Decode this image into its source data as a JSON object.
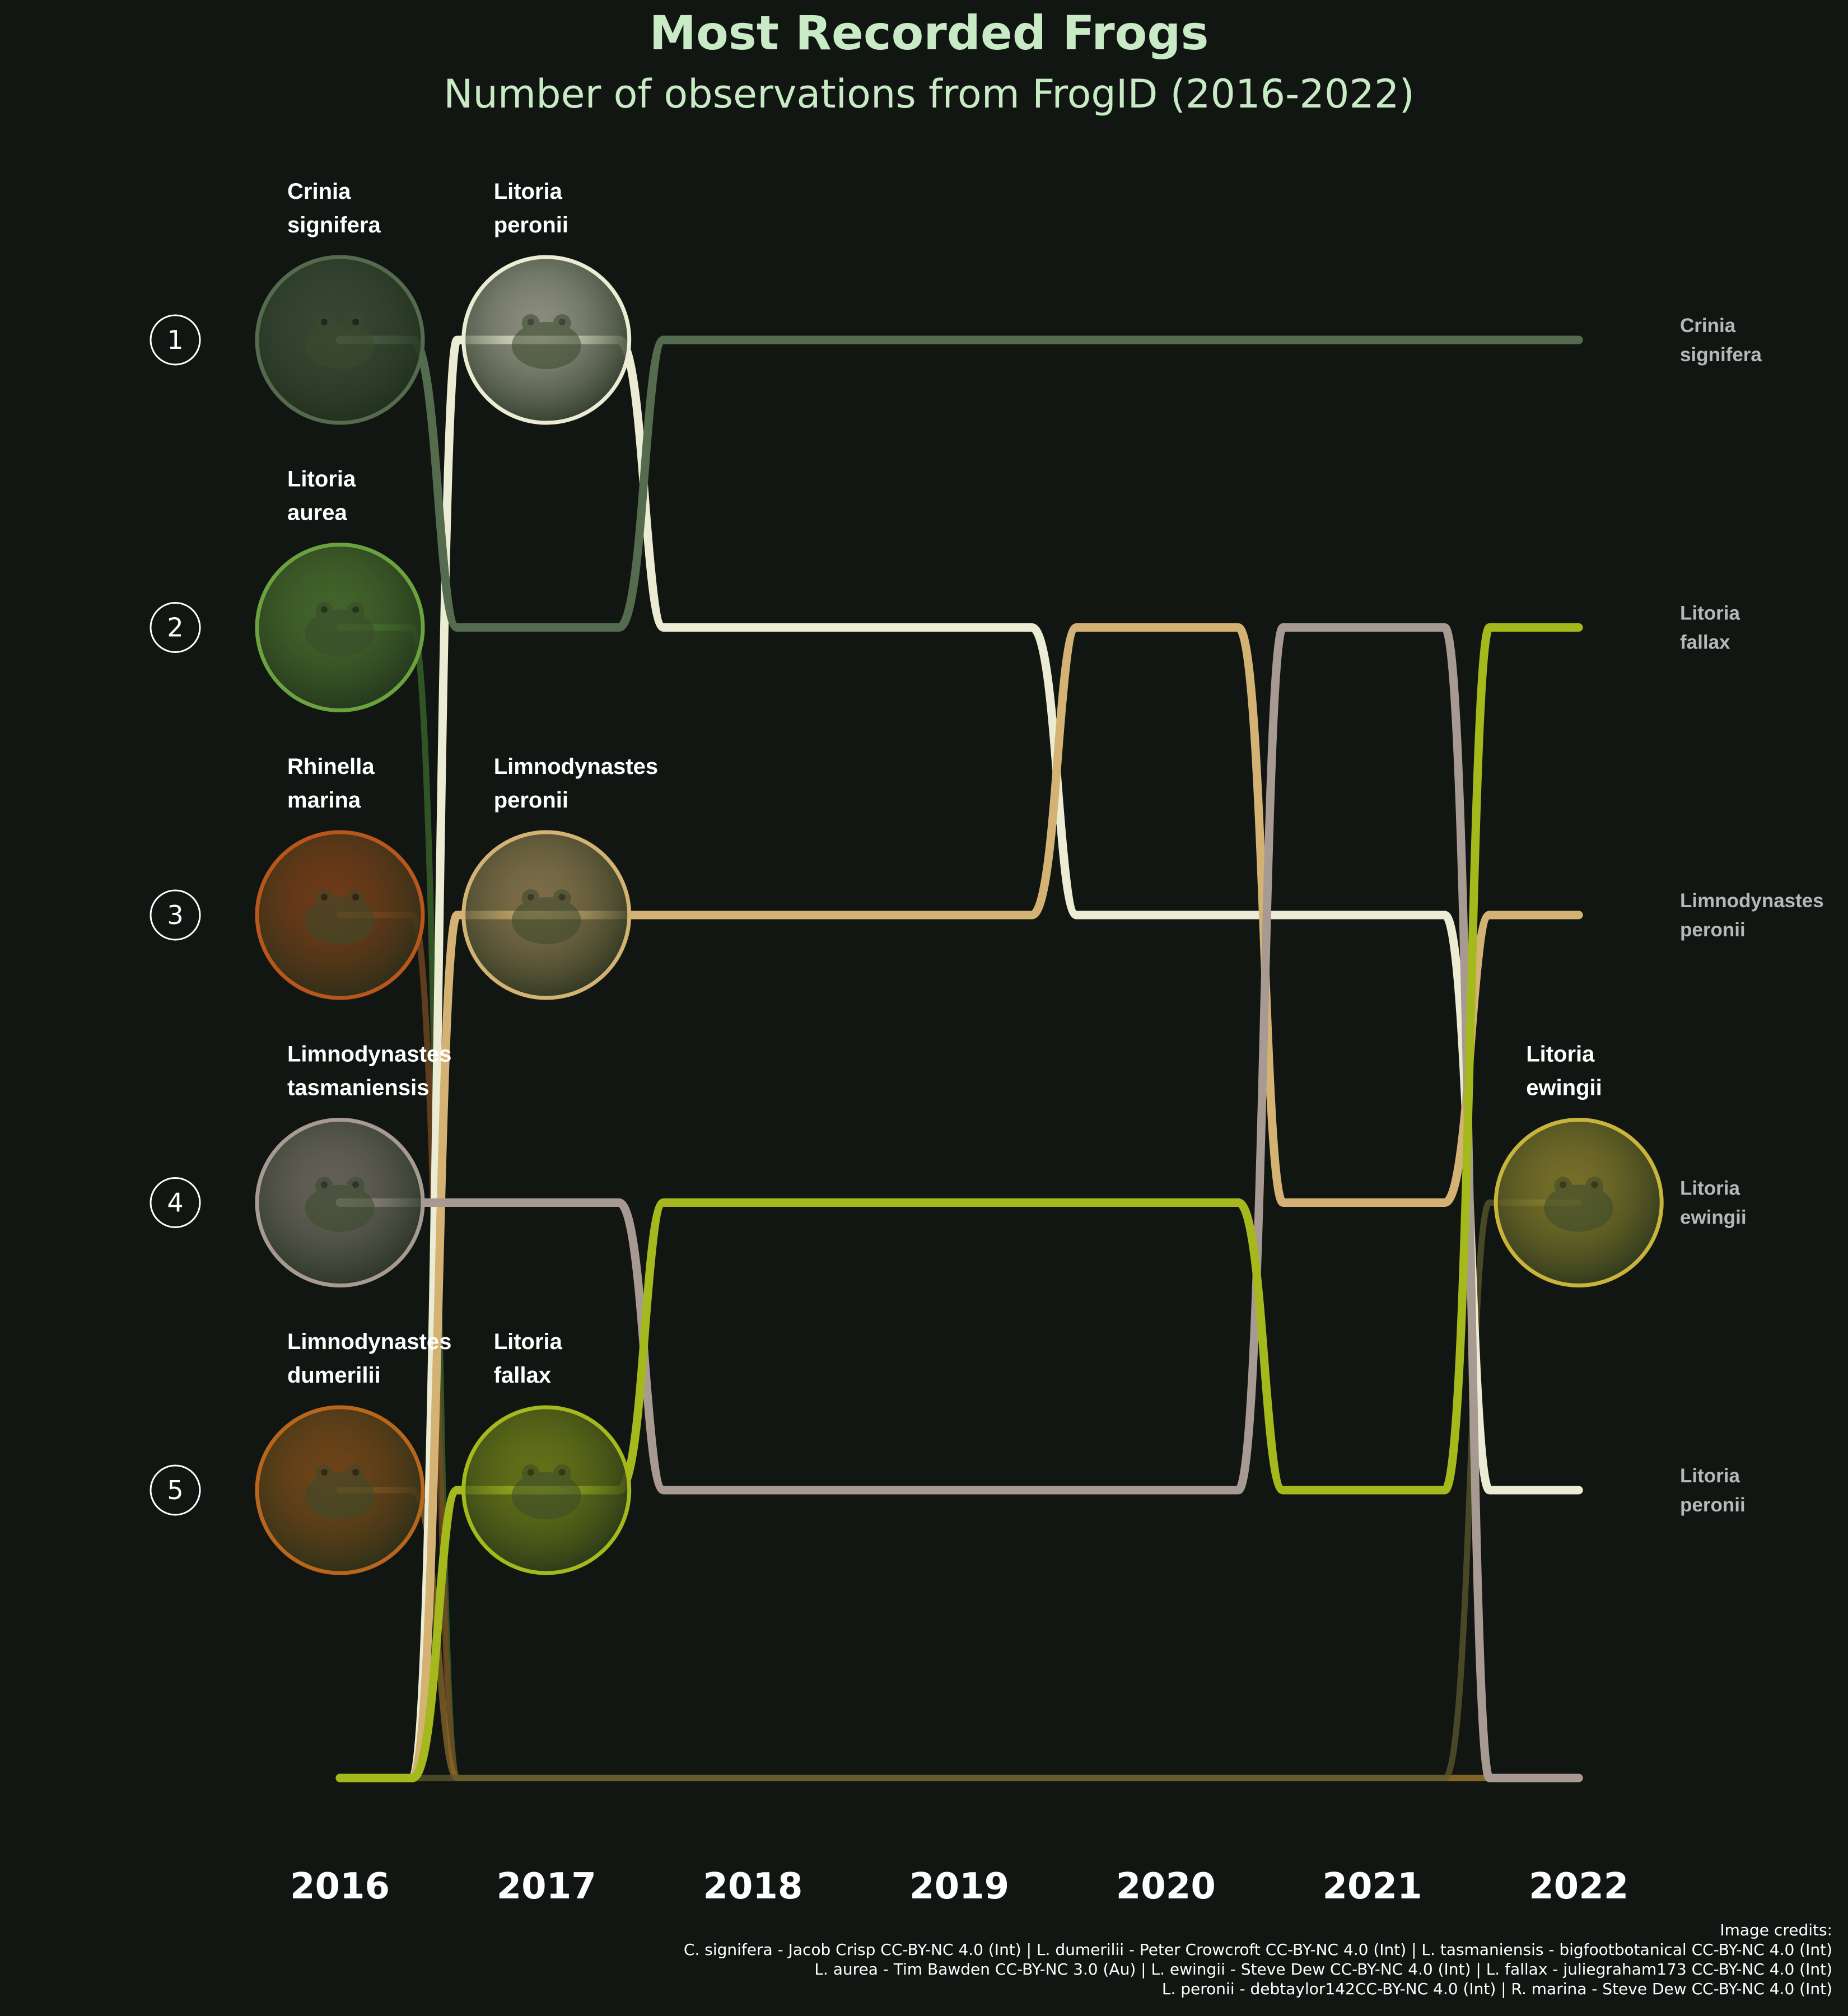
{
  "header": {
    "title": "Most Recorded Frogs",
    "subtitle": "Number of observations from FrogID (2016-2022)"
  },
  "credits": {
    "heading": "Image credits:",
    "lines": [
      "C. signifera - Jacob Crisp CC-BY-NC 4.0 (Int) | L. dumerilii - Peter Crowcroft CC-BY-NC 4.0 (Int) | L. tasmaniensis - bigfootbotanical CC-BY-NC 4.0 (Int)",
      "L. aurea - Tim Bawden CC-BY-NC 3.0 (Au) | L. ewingii - Steve Dew CC-BY-NC 4.0 (Int) | L. fallax - juliegraham173 CC-BY-NC 4.0 (Int)",
      "L. peronii - debtaylor142\u001fCC-BY-NC 4.0 (Int) | R. marina - Steve Dew CC-BY-NC 4.0 (Int)"
    ]
  },
  "chart_data": {
    "type": "line",
    "chart_kind": "bump chart (rank over time)",
    "x": [
      "2016",
      "2017",
      "2018",
      "2019",
      "2020",
      "2021",
      "2022"
    ],
    "rank_labels": [
      "1",
      "2",
      "3",
      "4",
      "5"
    ],
    "y_direction": "rank 1 at top; 0 = outside top 5",
    "series": [
      {
        "name": "Crinia signifera",
        "color": "#556b4e",
        "ranks": [
          1,
          2,
          1,
          1,
          1,
          1,
          1
        ]
      },
      {
        "name": "Litoria peronii",
        "color": "#ecebd4",
        "ranks": [
          0,
          1,
          2,
          2,
          3,
          3,
          5
        ]
      },
      {
        "name": "Limnodynastes peronii",
        "color": "#d4b274",
        "ranks": [
          0,
          3,
          3,
          3,
          2,
          4,
          3
        ]
      },
      {
        "name": "Limnodynastes tasmaniensis",
        "color": "#a69a92",
        "ranks": [
          4,
          4,
          5,
          5,
          5,
          2,
          0
        ]
      },
      {
        "name": "Litoria fallax",
        "color": "#a5b81c",
        "ranks": [
          0,
          5,
          4,
          4,
          4,
          5,
          2
        ]
      },
      {
        "name": "Litoria aurea",
        "color": "#3e6a2c",
        "ranks": [
          2,
          0,
          0,
          0,
          0,
          0,
          0
        ]
      },
      {
        "name": "Rhinella marina",
        "color": "#7a4a22",
        "ranks": [
          3,
          0,
          0,
          0,
          0,
          0,
          0
        ]
      },
      {
        "name": "Limnodynastes dumerilii",
        "color": "#8a6a2a",
        "ranks": [
          5,
          0,
          0,
          0,
          0,
          0,
          0
        ]
      },
      {
        "name": "Litoria ewingii",
        "color": "#5c5a2e",
        "ranks": [
          0,
          0,
          0,
          0,
          0,
          0,
          4
        ]
      }
    ],
    "image_labels": [
      {
        "year": "2016",
        "rank": 1,
        "lines": [
          "Crinia",
          "signifera"
        ],
        "ring": "#556b4e",
        "icon": "frog-photo"
      },
      {
        "year": "2016",
        "rank": 2,
        "lines": [
          "Litoria",
          "aurea"
        ],
        "ring": "#69a23e",
        "icon": "frog-photo"
      },
      {
        "year": "2016",
        "rank": 3,
        "lines": [
          "Rhinella",
          "marina"
        ],
        "ring": "#b8561c",
        "icon": "frog-photo"
      },
      {
        "year": "2016",
        "rank": 4,
        "lines": [
          "Limnodynastes",
          "tasmaniensis"
        ],
        "ring": "#a69a92",
        "icon": "frog-photo"
      },
      {
        "year": "2016",
        "rank": 5,
        "lines": [
          "Limnodynastes",
          "dumerilii"
        ],
        "ring": "#b8661c",
        "icon": "frog-photo"
      },
      {
        "year": "2017",
        "rank": 1,
        "lines": [
          "Litoria",
          "peronii"
        ],
        "ring": "#ecebd4",
        "icon": "frog-photo"
      },
      {
        "year": "2017",
        "rank": 3,
        "lines": [
          "Limnodynastes",
          "peronii"
        ],
        "ring": "#d4b274",
        "icon": "frog-photo"
      },
      {
        "year": "2017",
        "rank": 5,
        "lines": [
          "Litoria",
          "fallax"
        ],
        "ring": "#a5b81c",
        "icon": "frog-photo"
      },
      {
        "year": "2022",
        "rank": 4,
        "lines": [
          "Litoria",
          "ewingii"
        ],
        "ring": "#c8b43a",
        "icon": "frog-photo"
      }
    ],
    "end_labels": [
      {
        "rank": 1,
        "lines": [
          "Crinia",
          "signifera"
        ]
      },
      {
        "rank": 2,
        "lines": [
          "Litoria",
          "fallax"
        ]
      },
      {
        "rank": 3,
        "lines": [
          "Limnodynastes",
          "peronii"
        ]
      },
      {
        "rank": 4,
        "lines": [
          "Litoria",
          "ewingii"
        ]
      },
      {
        "rank": 5,
        "lines": [
          "Litoria",
          "peronii"
        ]
      }
    ]
  }
}
